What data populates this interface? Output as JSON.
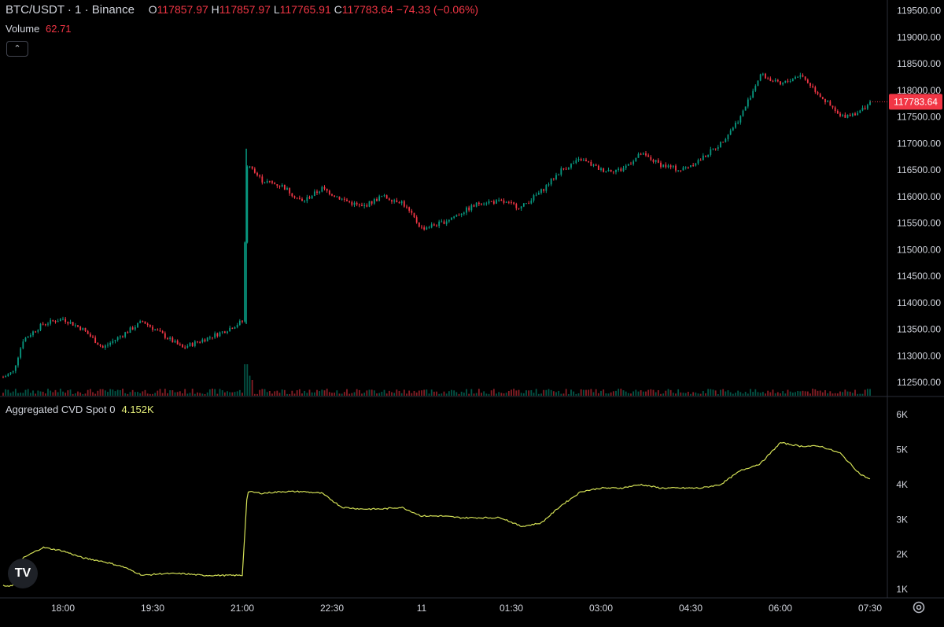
{
  "legend": {
    "symbol": "BTC/USDT · 1 · Binance",
    "o_label": "O",
    "o": "117857.97",
    "h_label": "H",
    "h": "117857.97",
    "l_label": "L",
    "l": "117765.91",
    "c_label": "C",
    "c": "117783.64",
    "change": "−74.33 (−0.06%)"
  },
  "volume": {
    "label": "Volume",
    "value": "62.71"
  },
  "collapse_icon": "chevron-up-icon",
  "cvd": {
    "label": "Aggregated CVD Spot 0",
    "value": "4.152K"
  },
  "price_axis_ticks": [
    "119500.00",
    "119000.00",
    "118500.00",
    "118000.00",
    "117500.00",
    "117000.00",
    "116500.00",
    "116000.00",
    "115500.00",
    "115000.00",
    "114500.00",
    "114000.00",
    "113500.00",
    "113000.00",
    "112500.00"
  ],
  "current_price": "117783.64",
  "cvd_axis_ticks": [
    "6K",
    "5K",
    "4K",
    "3K",
    "2K",
    "1K"
  ],
  "time_axis_ticks": [
    "18:00",
    "19:30",
    "21:00",
    "22:30",
    "11",
    "01:30",
    "03:00",
    "04:30",
    "06:00",
    "07:30"
  ],
  "colors": {
    "up": "#089981",
    "down": "#f23645",
    "cvd": "#d4e157",
    "bg": "#000000"
  },
  "chart_data": [
    {
      "type": "candlestick",
      "title": "BTC/USDT · 1 · Binance",
      "ylim": [
        112250,
        119700
      ],
      "x": [
        "17:00",
        "17:10",
        "17:20",
        "17:40",
        "18:00",
        "18:20",
        "18:40",
        "19:00",
        "19:20",
        "19:40",
        "20:00",
        "20:20",
        "20:40",
        "21:00",
        "21:05",
        "21:20",
        "21:40",
        "22:00",
        "22:20",
        "22:40",
        "23:00",
        "23:20",
        "23:40",
        "00:00",
        "00:20",
        "00:40",
        "01:00",
        "01:20",
        "01:40",
        "02:00",
        "02:20",
        "02:40",
        "03:00",
        "03:20",
        "03:40",
        "04:00",
        "04:20",
        "04:40",
        "05:00",
        "05:20",
        "05:40",
        "06:00",
        "06:20",
        "06:40",
        "07:00",
        "07:20",
        "07:30"
      ],
      "close": [
        112600,
        112700,
        113300,
        113600,
        113700,
        113500,
        113150,
        113400,
        113650,
        113400,
        113150,
        113300,
        113450,
        113650,
        116600,
        116300,
        116200,
        115900,
        116150,
        115950,
        115800,
        116000,
        115900,
        115400,
        115500,
        115700,
        115900,
        115900,
        115800,
        116100,
        116500,
        116700,
        116500,
        116500,
        116800,
        116600,
        116500,
        116700,
        117000,
        117500,
        118300,
        118100,
        118300,
        117900,
        117500,
        117600,
        117783.64
      ]
    },
    {
      "type": "line",
      "title": "Aggregated CVD Spot 0",
      "ylim": [
        800,
        6500
      ],
      "x": [
        "17:00",
        "17:10",
        "17:20",
        "17:40",
        "18:00",
        "18:20",
        "18:40",
        "19:00",
        "19:20",
        "19:40",
        "20:00",
        "20:20",
        "20:40",
        "21:00",
        "21:05",
        "21:20",
        "21:40",
        "22:00",
        "22:20",
        "22:40",
        "23:00",
        "23:20",
        "23:40",
        "00:00",
        "00:20",
        "00:40",
        "01:00",
        "01:20",
        "01:40",
        "02:00",
        "02:20",
        "02:40",
        "03:00",
        "03:20",
        "03:40",
        "04:00",
        "04:20",
        "04:40",
        "05:00",
        "05:20",
        "05:40",
        "06:00",
        "06:20",
        "06:40",
        "07:00",
        "07:20",
        "07:30"
      ],
      "values": [
        1100,
        1100,
        1900,
        2200,
        2100,
        1900,
        1800,
        1650,
        1400,
        1450,
        1450,
        1400,
        1400,
        1400,
        3800,
        3750,
        3800,
        3800,
        3750,
        3350,
        3300,
        3300,
        3350,
        3100,
        3100,
        3050,
        3050,
        3050,
        2800,
        2900,
        3400,
        3800,
        3900,
        3900,
        4000,
        3900,
        3900,
        3900,
        4000,
        4400,
        4600,
        5200,
        5100,
        5100,
        4900,
        4300,
        4152
      ]
    }
  ]
}
